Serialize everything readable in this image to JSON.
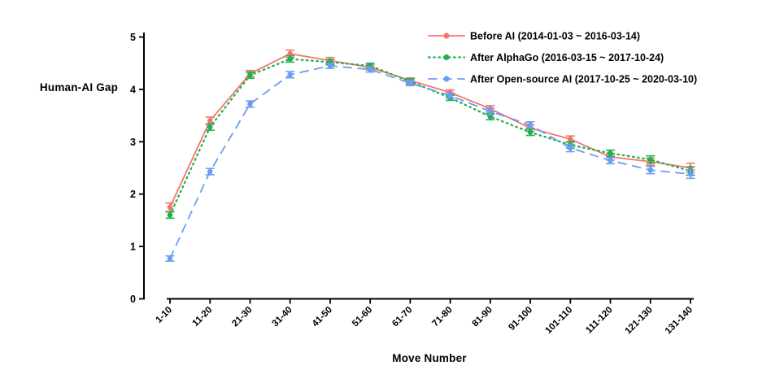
{
  "chart_data": {
    "type": "line",
    "title": "",
    "xlabel": "Move Number",
    "ylabel": "Human-AI Gap",
    "categories": [
      "1-10",
      "11-20",
      "21-30",
      "31-40",
      "41-50",
      "51-60",
      "61-70",
      "71-80",
      "81-90",
      "91-100",
      "101-110",
      "111-120",
      "121-130",
      "131-140"
    ],
    "ylim": [
      0,
      5
    ],
    "yticks": [
      0,
      1,
      2,
      3,
      4,
      5
    ],
    "grid": false,
    "legend_position": "top-right",
    "axis_color": "#000000",
    "series": [
      {
        "name": "Before AI (2014-01-03 ~ 2016-03-14)",
        "color": "#F4756F",
        "style": "solid",
        "values": [
          1.75,
          3.4,
          4.3,
          4.68,
          4.55,
          4.42,
          4.17,
          3.94,
          3.63,
          3.26,
          3.05,
          2.71,
          2.62,
          2.5
        ],
        "errors": [
          0.08,
          0.07,
          0.06,
          0.07,
          0.06,
          0.05,
          0.05,
          0.05,
          0.06,
          0.06,
          0.06,
          0.06,
          0.07,
          0.09
        ]
      },
      {
        "name": "After AlphaGo (2016-03-15 ~ 2017-10-24)",
        "color": "#23B14D",
        "style": "dotted",
        "values": [
          1.6,
          3.28,
          4.27,
          4.58,
          4.52,
          4.45,
          4.15,
          3.84,
          3.48,
          3.18,
          2.94,
          2.78,
          2.66,
          2.44
        ],
        "errors": [
          0.06,
          0.06,
          0.06,
          0.06,
          0.05,
          0.05,
          0.05,
          0.05,
          0.06,
          0.06,
          0.06,
          0.06,
          0.07,
          0.08
        ]
      },
      {
        "name": "After Open-source AI (2017-10-25 ~ 2020-03-10)",
        "color": "#6A9DF3",
        "style": "dashed",
        "values": [
          0.77,
          2.43,
          3.72,
          4.28,
          4.45,
          4.38,
          4.12,
          3.88,
          3.58,
          3.32,
          2.88,
          2.64,
          2.46,
          2.38
        ],
        "errors": [
          0.05,
          0.06,
          0.06,
          0.06,
          0.05,
          0.05,
          0.05,
          0.05,
          0.06,
          0.06,
          0.07,
          0.06,
          0.07,
          0.08
        ]
      }
    ]
  }
}
